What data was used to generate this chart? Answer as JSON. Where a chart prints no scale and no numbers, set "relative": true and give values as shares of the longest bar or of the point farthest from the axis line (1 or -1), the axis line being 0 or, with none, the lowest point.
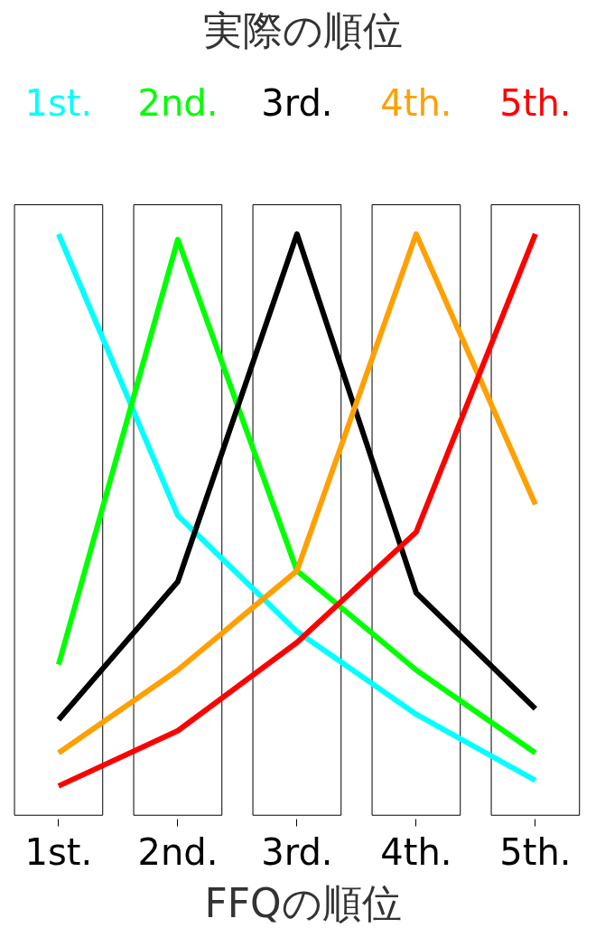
{
  "chart_data": {
    "type": "line",
    "title": "実際の順位",
    "xlabel": "FFQの順位",
    "categories": [
      "1st.",
      "2nd.",
      "3rd.",
      "4th.",
      "5th."
    ],
    "relative": true,
    "legend": "top",
    "grid": false,
    "marker": "none",
    "line_style": "solid",
    "series": [
      {
        "name": "1st.",
        "color": "#00ffff",
        "values": [
          1,
          0.49,
          0.28,
          0.13,
          0.01
        ]
      },
      {
        "name": "2nd.",
        "color": "#00ff00",
        "values": [
          0.22,
          0.99,
          0.39,
          0.21,
          0.06
        ]
      },
      {
        "name": "3rd.",
        "color": "#000000",
        "values": [
          0.12,
          0.37,
          1,
          0.35,
          0.14
        ]
      },
      {
        "name": "4th.",
        "color": "#ffa000",
        "values": [
          0.06,
          0.21,
          0.39,
          1,
          0.51
        ]
      },
      {
        "name": "5th.",
        "color": "#ff0000",
        "values": [
          0,
          0.1,
          0.26,
          0.46,
          1
        ]
      }
    ]
  }
}
